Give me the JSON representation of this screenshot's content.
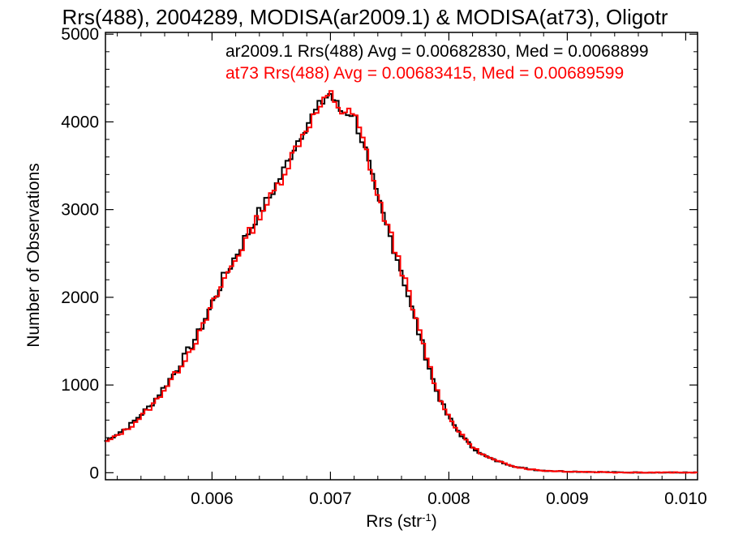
{
  "chart_data": {
    "type": "line",
    "title": "Rrs(488), 2004289, MODISA(ar2009.1) & MODISA(at73), Oligotr",
    "xlabel_main": "Rrs (str",
    "xlabel_sup": "-1",
    "xlabel_close": ")",
    "ylabel": "Number of Observations",
    "xlim": [
      0.0051,
      0.0101
    ],
    "ylim": [
      -80,
      5020
    ],
    "x_ticks": [
      0.006,
      0.007,
      0.008,
      0.009,
      0.01
    ],
    "x_tick_labels": [
      "0.006",
      "0.007",
      "0.008",
      "0.009",
      "0.010"
    ],
    "y_ticks": [
      0,
      1000,
      2000,
      3000,
      4000,
      5000
    ],
    "y_tick_labels": [
      "0",
      "1000",
      "2000",
      "3000",
      "4000",
      "5000"
    ],
    "grid": false,
    "legend_position": "top-right",
    "annotations": [
      "ar2009.1 Rrs(488) Avg = 0.00682830, Med = 0.0068899",
      "at73 Rrs(488) Avg = 0.00683415, Med = 0.00689599"
    ],
    "colors": {
      "ar2009": "#000000",
      "at73": "#ff0000"
    },
    "step_histogram": true,
    "x": [
      0.0051,
      0.0053,
      0.0055,
      0.0057,
      0.0059,
      0.0061,
      0.0063,
      0.0064,
      0.0065,
      0.0066,
      0.0067,
      0.0068,
      0.0069,
      0.007,
      0.0071,
      0.0072,
      0.0073,
      0.0074,
      0.0075,
      0.0076,
      0.0077,
      0.0078,
      0.0079,
      0.008,
      0.0081,
      0.0082,
      0.0083,
      0.0084,
      0.0085,
      0.0086,
      0.0087,
      0.0088,
      0.0089,
      0.009,
      0.0092,
      0.0094,
      0.0096,
      0.0098,
      0.0101
    ],
    "series": [
      {
        "name": "ar2009.1",
        "values": [
          350,
          520,
          780,
          1150,
          1600,
          2200,
          2700,
          2950,
          3150,
          3400,
          3700,
          3950,
          4150,
          4330,
          4120,
          4100,
          3700,
          3150,
          2750,
          2350,
          1850,
          1400,
          950,
          650,
          450,
          300,
          200,
          140,
          100,
          60,
          40,
          25,
          20,
          15,
          10,
          5,
          3,
          2,
          1
        ]
      },
      {
        "name": "at73",
        "values": [
          340,
          510,
          770,
          1140,
          1590,
          2190,
          2690,
          2940,
          3140,
          3390,
          3690,
          3940,
          4140,
          4320,
          4110,
          4090,
          3690,
          3140,
          2740,
          2340,
          1840,
          1390,
          940,
          640,
          440,
          295,
          195,
          135,
          95,
          58,
          38,
          24,
          19,
          14,
          9,
          5,
          3,
          2,
          1
        ]
      }
    ]
  }
}
